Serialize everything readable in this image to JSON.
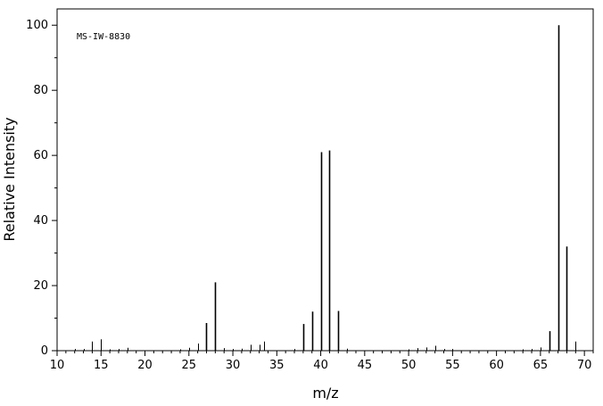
{
  "chart_data": {
    "type": "bar",
    "title": "",
    "annotation": "MS-IW-8830",
    "xlabel": "m/z",
    "ylabel": "Relative Intensity",
    "xlim": [
      10,
      71
    ],
    "ylim": [
      0,
      105
    ],
    "x_ticks": [
      "10",
      "15",
      "20",
      "25",
      "30",
      "35",
      "40",
      "45",
      "50",
      "55",
      "60",
      "65",
      "70"
    ],
    "y_ticks": [
      "0",
      "20",
      "40",
      "60",
      "80",
      "100"
    ],
    "grid": false,
    "series": [
      {
        "points": [
          {
            "x": 12,
            "y": 0.5
          },
          {
            "x": 13,
            "y": 0.5
          },
          {
            "x": 14,
            "y": 2.8
          },
          {
            "x": 15,
            "y": 3.5
          },
          {
            "x": 16,
            "y": 0.4
          },
          {
            "x": 17,
            "y": 0.5
          },
          {
            "x": 18,
            "y": 0.9
          },
          {
            "x": 24,
            "y": 0.4
          },
          {
            "x": 25,
            "y": 0.9
          },
          {
            "x": 26,
            "y": 2.2
          },
          {
            "x": 27,
            "y": 8.5
          },
          {
            "x": 28,
            "y": 21
          },
          {
            "x": 29,
            "y": 0.8
          },
          {
            "x": 30,
            "y": 0.5
          },
          {
            "x": 31,
            "y": 0.6
          },
          {
            "x": 32,
            "y": 1.8
          },
          {
            "x": 33,
            "y": 1.8
          },
          {
            "x": 33.5,
            "y": 2.8
          },
          {
            "x": 37,
            "y": 0.5
          },
          {
            "x": 38,
            "y": 8.2
          },
          {
            "x": 39,
            "y": 12
          },
          {
            "x": 40,
            "y": 61
          },
          {
            "x": 41,
            "y": 61.5
          },
          {
            "x": 42,
            "y": 12.2
          },
          {
            "x": 43,
            "y": 0.6
          },
          {
            "x": 50,
            "y": 0.4
          },
          {
            "x": 51,
            "y": 0.8
          },
          {
            "x": 52,
            "y": 1.0
          },
          {
            "x": 53,
            "y": 1.5
          },
          {
            "x": 54,
            "y": 0.5
          },
          {
            "x": 55,
            "y": 0.5
          },
          {
            "x": 63,
            "y": 0.4
          },
          {
            "x": 64,
            "y": 0.5
          },
          {
            "x": 65,
            "y": 1.0
          },
          {
            "x": 66,
            "y": 6
          },
          {
            "x": 67,
            "y": 100
          },
          {
            "x": 68,
            "y": 32
          },
          {
            "x": 69,
            "y": 2.8
          }
        ]
      }
    ]
  }
}
